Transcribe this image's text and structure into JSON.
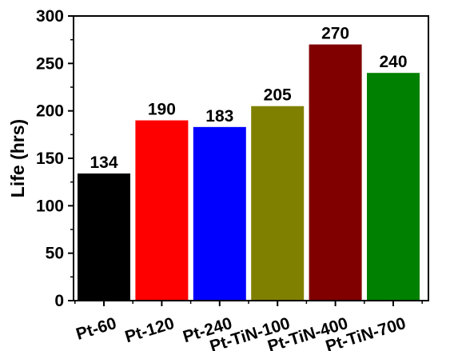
{
  "chart_data": {
    "type": "bar",
    "categories": [
      "Pt-60",
      "Pt-120",
      "Pt-240",
      "Pt-TiN-100",
      "Pt-TiN-400",
      "Pt-TiN-700"
    ],
    "values": [
      134,
      190,
      183,
      205,
      270,
      240
    ],
    "value_labels": [
      "134",
      "190",
      "183",
      "205",
      "270",
      "240"
    ],
    "bar_colors": [
      "#000000",
      "#ff0000",
      "#0000ff",
      "#808000",
      "#800000",
      "#008000"
    ],
    "xlabel": "",
    "ylabel": "Life (hrs)",
    "ylim": [
      0,
      300
    ],
    "yticks": [
      0,
      50,
      100,
      150,
      200,
      250,
      300
    ],
    "ytick_labels": [
      "0",
      "50",
      "100",
      "150",
      "200",
      "250",
      "300"
    ],
    "grid": false,
    "legend": "none"
  }
}
